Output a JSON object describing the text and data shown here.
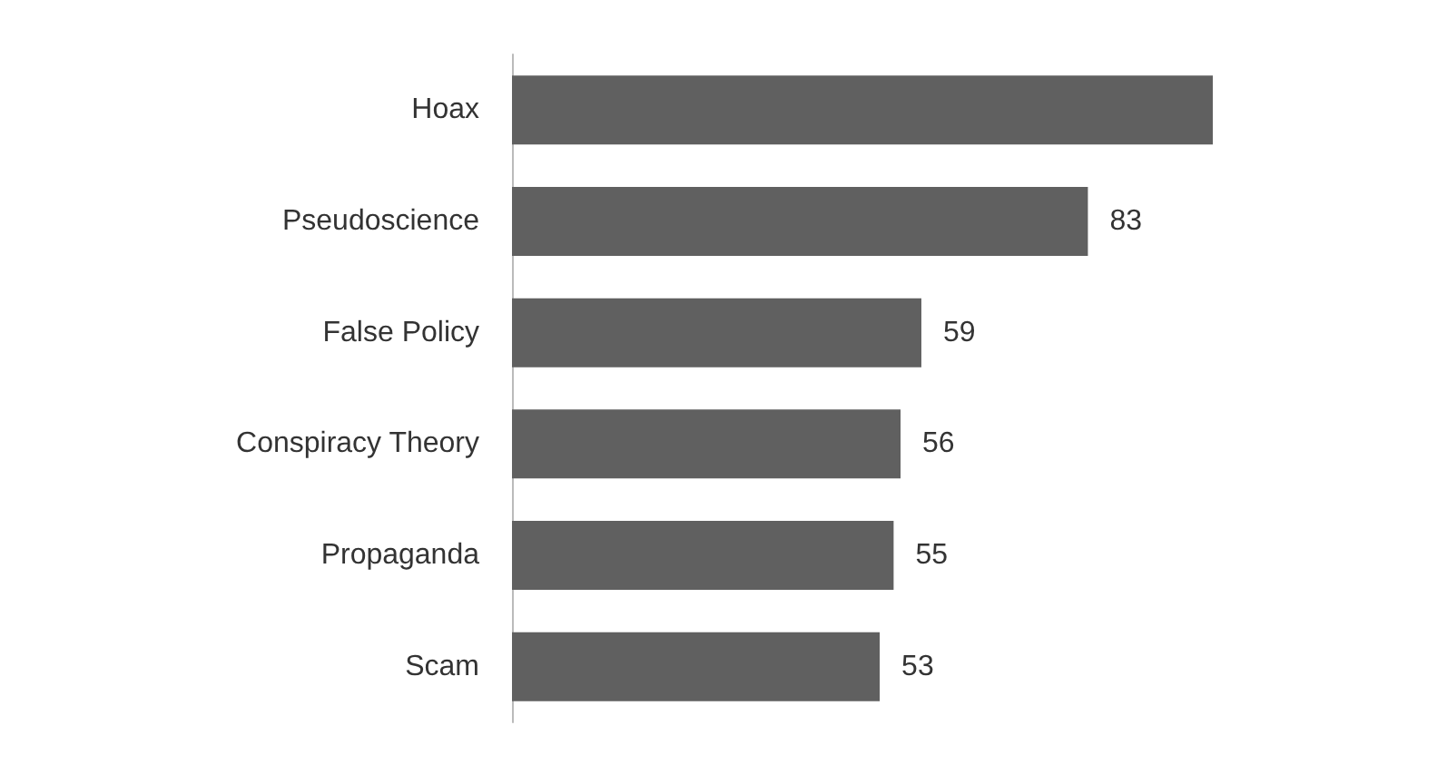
{
  "chart_data": {
    "type": "bar",
    "orientation": "horizontal",
    "categories": [
      "Hoax",
      "Pseudoscience",
      "False Policy",
      "Conspiracy Theory",
      "Propaganda",
      "Scam"
    ],
    "values": [
      101,
      83,
      59,
      56,
      55,
      53
    ],
    "value_labels": [
      null,
      "83",
      "59",
      "56",
      "55",
      "53"
    ],
    "color": "#606060"
  }
}
